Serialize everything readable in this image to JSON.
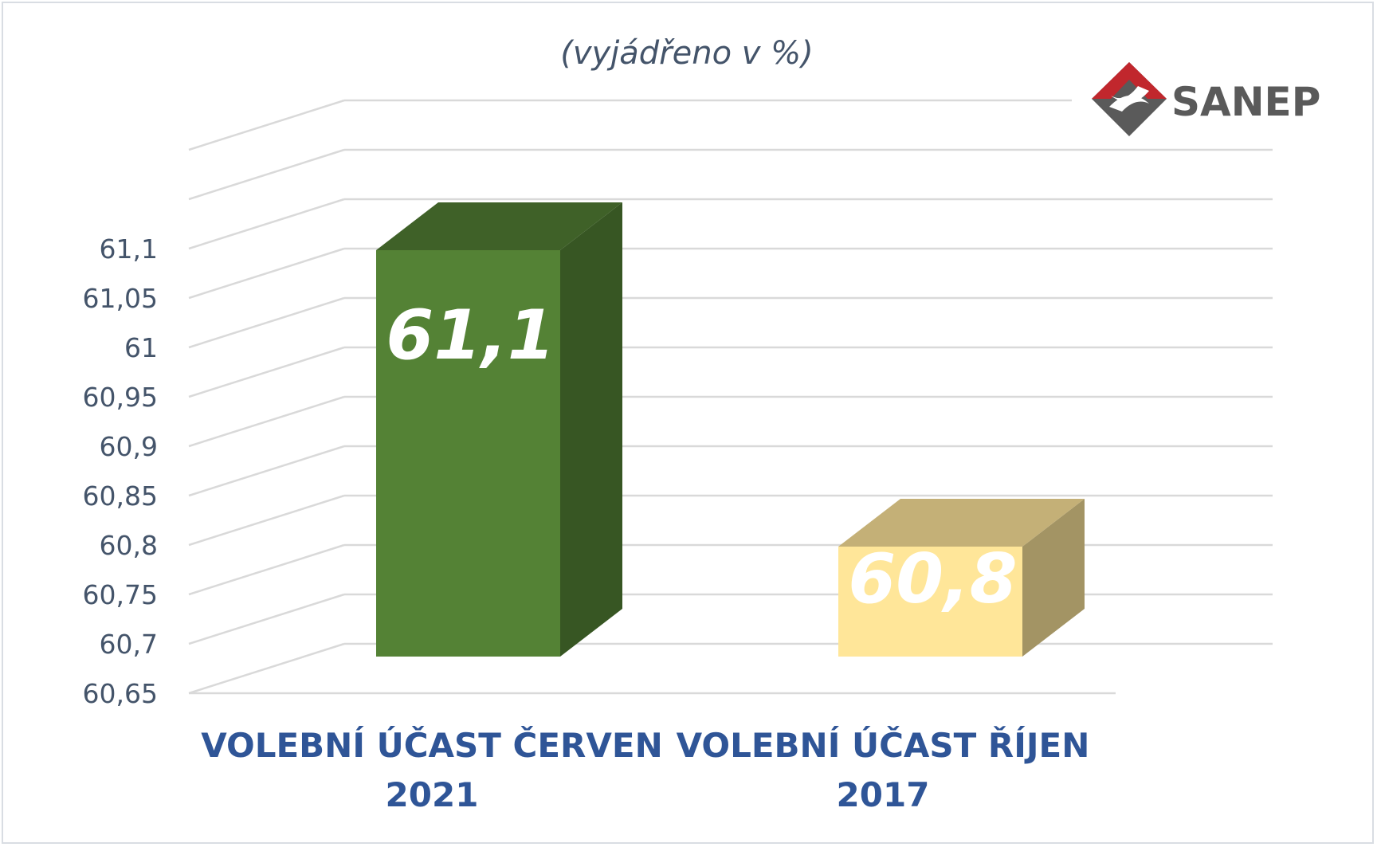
{
  "chart_data": {
    "type": "bar",
    "subtitle": "(vyjádřeno v %)",
    "categories": [
      [
        "VOLEBNÍ ÚČAST ČERVEN",
        "2021"
      ],
      [
        "VOLEBNÍ ÚČAST ŘÍJEN",
        "2017"
      ]
    ],
    "values": [
      61.1,
      60.8
    ],
    "data_labels": [
      "61,1",
      "60,8"
    ],
    "ylim": [
      60.65,
      61.1
    ],
    "yticks": [
      "60,65",
      "60,7",
      "60,75",
      "60,8",
      "60,85",
      "60,9",
      "60,95",
      "61",
      "61,05",
      "61,1"
    ],
    "grid": true,
    "legend": "none",
    "colors": {
      "bar1_front": "#548235",
      "bar1_side": "#375623",
      "bar1_top": "#3f6128",
      "bar2_front": "#ffe699",
      "bar2_side": "#a39464",
      "bar2_top": "#c4b077",
      "grid": "#d9d9d9",
      "tick_text": "#44546a",
      "category_text": "#2f5597"
    }
  },
  "logo": {
    "text": "SANEP",
    "icon": "sanep-logo-icon"
  }
}
